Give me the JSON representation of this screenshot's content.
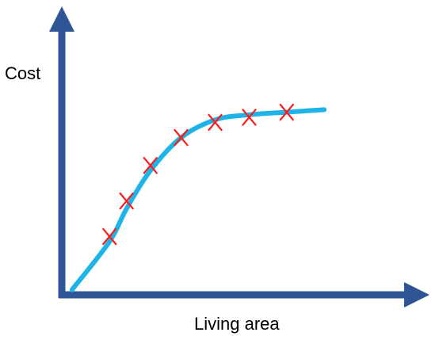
{
  "chart_data": {
    "type": "scatter",
    "title": "",
    "xlabel": "Living area",
    "ylabel": "Cost",
    "show_ticks": false,
    "grid": false,
    "legend": "none",
    "x_range": [
      0,
      100
    ],
    "y_range": [
      0,
      100
    ],
    "points": [
      {
        "x": 14,
        "y": 23
      },
      {
        "x": 19,
        "y": 37
      },
      {
        "x": 26,
        "y": 51
      },
      {
        "x": 35,
        "y": 62
      },
      {
        "x": 45,
        "y": 68
      },
      {
        "x": 55,
        "y": 70
      },
      {
        "x": 66,
        "y": 72
      }
    ],
    "fit_curve": [
      {
        "x": 3,
        "y": 2
      },
      {
        "x": 14,
        "y": 21
      },
      {
        "x": 19,
        "y": 34
      },
      {
        "x": 26,
        "y": 49
      },
      {
        "x": 35,
        "y": 62
      },
      {
        "x": 45,
        "y": 69
      },
      {
        "x": 55,
        "y": 71
      },
      {
        "x": 66,
        "y": 72
      },
      {
        "x": 77,
        "y": 73
      }
    ],
    "colors": {
      "axis": "#2F5597",
      "curve": "#1FB4E8",
      "points": "#FF1A1A"
    }
  }
}
